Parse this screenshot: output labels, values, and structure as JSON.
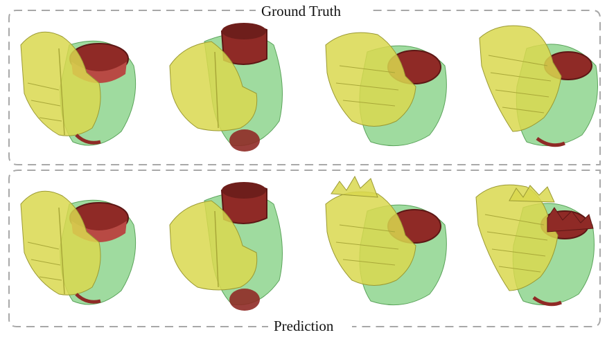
{
  "figure": {
    "top_label": "Ground Truth",
    "bottom_label": "Prediction"
  },
  "colors": {
    "frame": "#a8a8a8",
    "yellow": "#d9d84f",
    "green": "#7fcf7f",
    "red": "#8f2a26"
  },
  "panels": [
    {
      "row": "ground-truth",
      "views": 4
    },
    {
      "row": "prediction",
      "views": 4
    }
  ]
}
